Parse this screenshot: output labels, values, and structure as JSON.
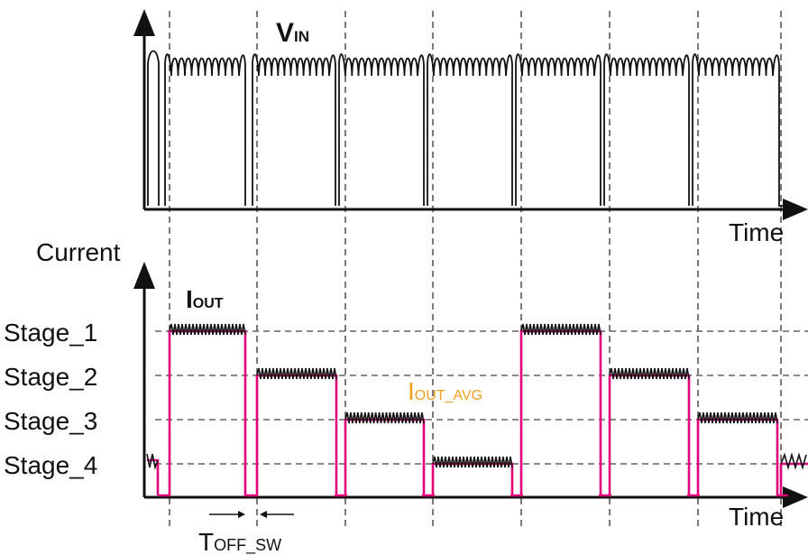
{
  "labels": {
    "vin_main": "V",
    "vin_sub": "IN",
    "time_top": "Time",
    "current": "Current",
    "time_bottom": "Time",
    "iout_main": "I",
    "iout_sub": "OUT",
    "iout_avg_main": "I",
    "iout_avg_sub": "OUT_AVG",
    "toff_main": "T",
    "toff_sub": "OFF_SW"
  },
  "stages": [
    "Stage_1",
    "Stage_2",
    "Stage_3",
    "Stage_4"
  ],
  "colors": {
    "ink": "#111111",
    "envelope": "#e0007a",
    "avg_label": "#f0a020"
  },
  "cycles": 8,
  "stage_sequence": [
    1,
    2,
    3,
    4,
    1,
    2,
    3,
    4
  ]
}
